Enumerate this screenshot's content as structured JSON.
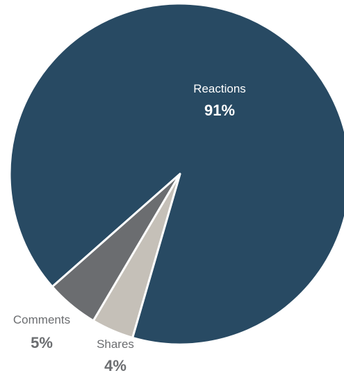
{
  "chart_data": {
    "type": "pie",
    "title": "",
    "series": [
      {
        "name": "Reactions",
        "value": 91,
        "label": "91%",
        "color": "#284a63"
      },
      {
        "name": "Shares",
        "value": 4,
        "label": "4%",
        "color": "#c5c0b8"
      },
      {
        "name": "Comments",
        "value": 5,
        "label": "5%",
        "color": "#6b6d70"
      }
    ],
    "label_colors": {
      "inside": "#ffffff",
      "outside": "#6b6d70"
    },
    "legend": "none"
  }
}
